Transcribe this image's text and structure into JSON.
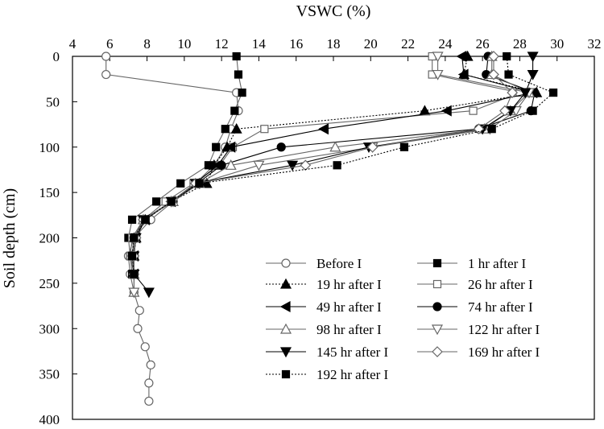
{
  "chart_data": {
    "type": "line",
    "xlabel": "VSWC (%)",
    "ylabel": "Soil depth (cm)",
    "xlim": [
      4,
      32
    ],
    "ylim": [
      0,
      400
    ],
    "y_inverted": true,
    "x_axis_position": "top",
    "x_ticks": [
      4,
      6,
      8,
      10,
      12,
      14,
      16,
      18,
      20,
      22,
      24,
      26,
      28,
      30,
      32
    ],
    "y_ticks": [
      0,
      50,
      100,
      150,
      200,
      250,
      300,
      350,
      400
    ],
    "grid": false,
    "legend_position": "bottom-right",
    "series": [
      {
        "name": "Before I",
        "marker": "circle-open",
        "line": "solid",
        "color": "#666666",
        "points": [
          [
            5.8,
            0
          ],
          [
            5.8,
            20
          ],
          [
            12.8,
            40
          ],
          [
            12.9,
            60
          ],
          [
            12.5,
            80
          ],
          [
            12.2,
            100
          ],
          [
            11.6,
            120
          ],
          [
            10.6,
            140
          ],
          [
            9.4,
            160
          ],
          [
            8.2,
            180
          ],
          [
            7.3,
            200
          ],
          [
            7.0,
            220
          ],
          [
            7.1,
            240
          ],
          [
            7.3,
            260
          ],
          [
            7.6,
            280
          ],
          [
            7.5,
            300
          ],
          [
            7.9,
            320
          ],
          [
            8.2,
            340
          ],
          [
            8.1,
            360
          ],
          [
            8.1,
            380
          ]
        ]
      },
      {
        "name": "1 hr after I",
        "marker": "square-filled",
        "line": "solid",
        "color": "#666666",
        "points": [
          [
            12.8,
            0
          ],
          [
            12.9,
            20
          ],
          [
            13.1,
            40
          ],
          [
            12.7,
            60
          ],
          [
            12.2,
            80
          ],
          [
            11.7,
            100
          ],
          [
            11.3,
            120
          ],
          [
            9.8,
            140
          ],
          [
            8.5,
            160
          ],
          [
            7.2,
            180
          ],
          [
            7.0,
            200
          ],
          [
            7.1,
            220
          ],
          [
            7.2,
            240
          ]
        ]
      },
      {
        "name": "19 hr after I",
        "marker": "triangle-up-filled",
        "line": "dotted",
        "color": "#000000",
        "points": [
          [
            25.2,
            0
          ],
          [
            25.0,
            20
          ],
          [
            28.9,
            40
          ],
          [
            22.9,
            60
          ],
          [
            12.8,
            80
          ],
          [
            12.3,
            100
          ],
          [
            11.6,
            120
          ],
          [
            11.2,
            140
          ],
          [
            9.3,
            160
          ],
          [
            7.9,
            180
          ],
          [
            7.4,
            200
          ],
          [
            7.3,
            220
          ],
          [
            7.3,
            240
          ]
        ]
      },
      {
        "name": "26 hr after I",
        "marker": "square-open",
        "line": "solid",
        "color": "#666666",
        "points": [
          [
            23.3,
            0
          ],
          [
            23.3,
            20
          ],
          [
            28.0,
            40
          ],
          [
            25.5,
            60
          ],
          [
            14.3,
            80
          ],
          [
            12.6,
            100
          ],
          [
            11.9,
            120
          ],
          [
            10.5,
            140
          ],
          [
            9.0,
            160
          ],
          [
            7.8,
            180
          ],
          [
            7.2,
            200
          ],
          [
            7.1,
            220
          ],
          [
            7.3,
            240
          ]
        ]
      },
      {
        "name": "49 hr after I",
        "marker": "triangle-left-filled",
        "line": "solid",
        "color": "#000000",
        "points": [
          [
            24.9,
            0
          ],
          [
            25.0,
            20
          ],
          [
            28.7,
            40
          ],
          [
            24.1,
            60
          ],
          [
            17.5,
            80
          ],
          [
            12.5,
            100
          ],
          [
            11.8,
            120
          ],
          [
            10.6,
            140
          ],
          [
            9.3,
            160
          ],
          [
            7.9,
            180
          ],
          [
            7.4,
            200
          ],
          [
            7.3,
            220
          ],
          [
            7.3,
            240
          ]
        ]
      },
      {
        "name": "74 hr after I",
        "marker": "circle-filled",
        "line": "solid",
        "color": "#000000",
        "points": [
          [
            26.3,
            0
          ],
          [
            26.2,
            20
          ],
          [
            28.8,
            40
          ],
          [
            28.6,
            60
          ],
          [
            25.8,
            80
          ],
          [
            15.2,
            100
          ],
          [
            12.0,
            120
          ],
          [
            10.7,
            140
          ],
          [
            9.4,
            160
          ],
          [
            7.8,
            180
          ],
          [
            7.3,
            200
          ],
          [
            7.2,
            220
          ],
          [
            7.3,
            240
          ]
        ]
      },
      {
        "name": "98 hr after I",
        "marker": "triangle-up-open",
        "line": "solid",
        "color": "#666666",
        "points": [
          [
            26.5,
            0
          ],
          [
            26.5,
            20
          ],
          [
            28.5,
            40
          ],
          [
            27.5,
            60
          ],
          [
            26.1,
            80
          ],
          [
            18.1,
            100
          ],
          [
            12.5,
            120
          ],
          [
            10.8,
            140
          ],
          [
            9.4,
            160
          ],
          [
            7.8,
            180
          ],
          [
            7.3,
            200
          ],
          [
            7.2,
            220
          ],
          [
            7.3,
            240
          ],
          [
            7.3,
            260
          ]
        ]
      },
      {
        "name": "122 hr after I",
        "marker": "triangle-down-open",
        "line": "solid",
        "color": "#666666",
        "points": [
          [
            23.6,
            0
          ],
          [
            23.6,
            20
          ],
          [
            28.5,
            40
          ],
          [
            27.8,
            60
          ],
          [
            26.4,
            80
          ],
          [
            20.1,
            100
          ],
          [
            14.0,
            120
          ],
          [
            10.8,
            140
          ],
          [
            9.4,
            160
          ],
          [
            7.8,
            180
          ],
          [
            7.4,
            200
          ],
          [
            7.2,
            220
          ],
          [
            7.3,
            240
          ],
          [
            7.3,
            260
          ]
        ]
      },
      {
        "name": "145 hr after I",
        "marker": "triangle-down-filled",
        "line": "solid",
        "color": "#000000",
        "points": [
          [
            28.7,
            0
          ],
          [
            28.7,
            20
          ],
          [
            28.3,
            40
          ],
          [
            27.5,
            60
          ],
          [
            26.0,
            80
          ],
          [
            19.9,
            100
          ],
          [
            15.8,
            120
          ],
          [
            10.6,
            140
          ],
          [
            9.3,
            160
          ],
          [
            7.8,
            180
          ],
          [
            7.4,
            200
          ],
          [
            7.3,
            220
          ],
          [
            7.3,
            240
          ],
          [
            8.1,
            260
          ]
        ]
      },
      {
        "name": "169 hr after I",
        "marker": "diamond-open",
        "line": "solid",
        "color": "#666666",
        "points": [
          [
            26.6,
            0
          ],
          [
            26.6,
            20
          ],
          [
            27.6,
            40
          ],
          [
            27.2,
            60
          ],
          [
            25.8,
            80
          ],
          [
            20.1,
            100
          ],
          [
            16.5,
            120
          ],
          [
            10.6,
            140
          ],
          [
            9.3,
            160
          ],
          [
            7.8,
            180
          ],
          [
            7.4,
            200
          ],
          [
            7.3,
            220
          ],
          [
            7.3,
            240
          ]
        ]
      },
      {
        "name": "192 hr after I",
        "marker": "square-filled",
        "line": "dotted",
        "color": "#000000",
        "points": [
          [
            27.3,
            0
          ],
          [
            27.4,
            20
          ],
          [
            29.8,
            40
          ],
          [
            28.7,
            60
          ],
          [
            26.5,
            80
          ],
          [
            21.8,
            100
          ],
          [
            18.2,
            120
          ],
          [
            10.8,
            140
          ],
          [
            9.3,
            160
          ],
          [
            7.9,
            180
          ],
          [
            7.3,
            200
          ],
          [
            7.2,
            220
          ],
          [
            7.3,
            240
          ]
        ]
      }
    ]
  }
}
